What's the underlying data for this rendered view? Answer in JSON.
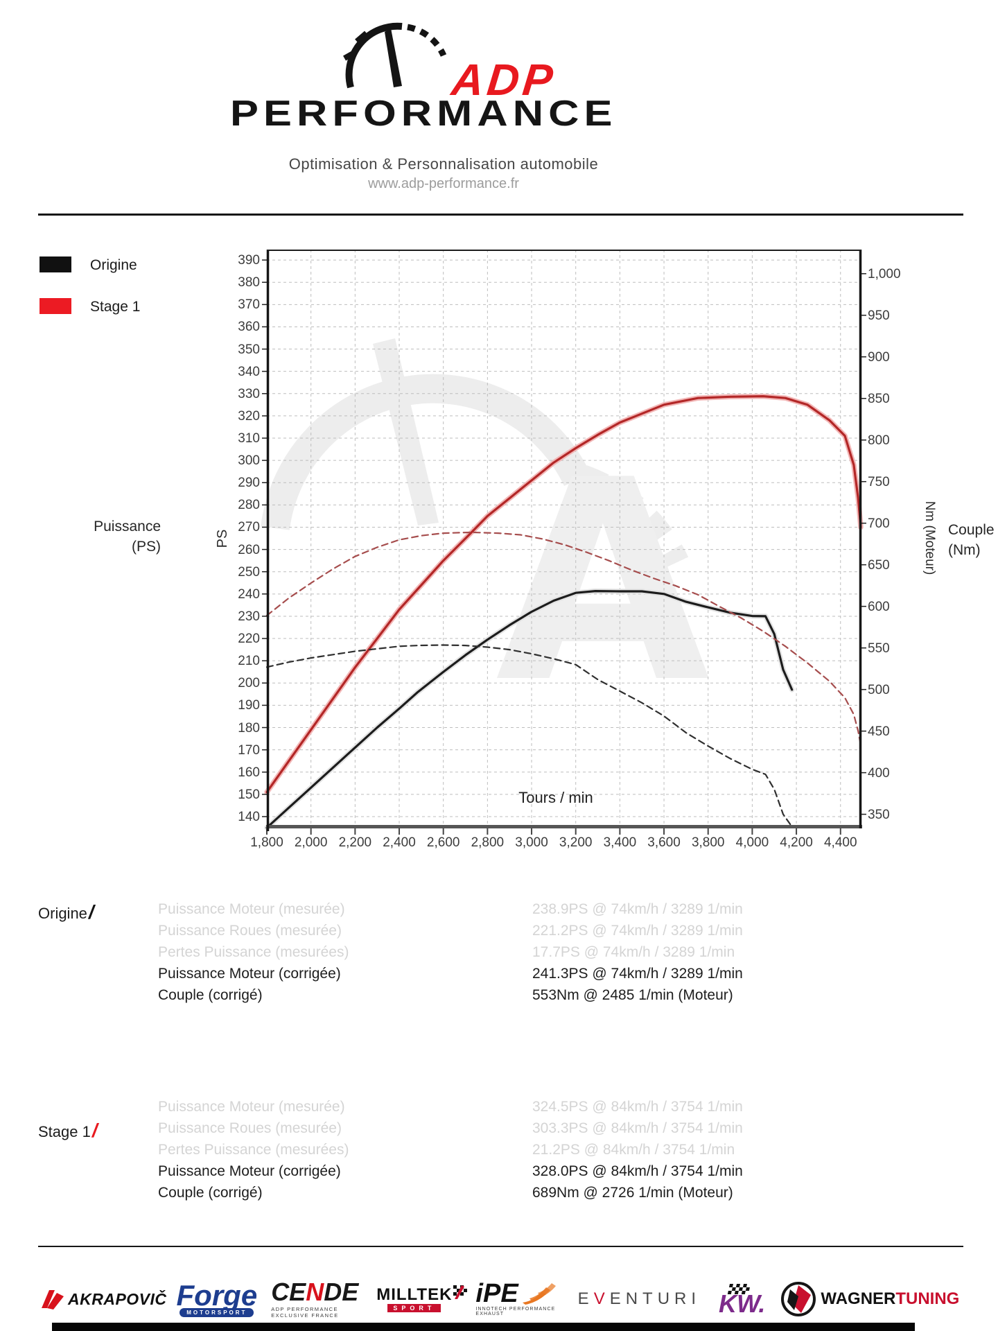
{
  "header": {
    "brand_adp": "ADP",
    "brand_performance": "PERFORMANCE",
    "tagline": "Optimisation & Personnalisation automobile",
    "website": "www.adp-performance.fr",
    "accent_red": "#e8191f",
    "ink": "#141414"
  },
  "legend": [
    {
      "label": "Origine",
      "color": "#111111"
    },
    {
      "label": "Stage 1",
      "color": "#ec1b23"
    }
  ],
  "chart_data": {
    "type": "line",
    "title": "",
    "xlabel": "Tours / min",
    "ylabel_left_line1": "Puissance",
    "ylabel_left_line2": "(PS)",
    "y_left_unit": "PS",
    "ylabel_right_line1": "Couple",
    "ylabel_right_line2": "(Nm)",
    "y_right_unit": "Nm (Moteur)",
    "grid": true,
    "grid_color": "#bdbdbd",
    "x_range": [
      1800,
      4495
    ],
    "x_ticks": [
      1800,
      2000,
      2200,
      2400,
      2600,
      2800,
      3000,
      3200,
      3400,
      3600,
      3800,
      4000,
      4200,
      4400
    ],
    "y_left_range": [
      134.7,
      394.7
    ],
    "y_left_ticks": [
      140,
      150,
      160,
      170,
      180,
      190,
      200,
      210,
      220,
      230,
      240,
      250,
      260,
      270,
      280,
      290,
      300,
      310,
      320,
      330,
      340,
      350,
      360,
      370,
      380,
      390
    ],
    "y_right_range": [
      333,
      1029
    ],
    "y_right_ticks": [
      350,
      400,
      450,
      500,
      550,
      600,
      650,
      700,
      750,
      800,
      850,
      900,
      950,
      1000
    ],
    "series": [
      {
        "name": "Origine Puissance (PS)",
        "axis": "left",
        "line": "solid",
        "color": "#1c1c1c",
        "halo": "#e3e3e3",
        "points": [
          [
            1800,
            135
          ],
          [
            1900,
            144
          ],
          [
            2000,
            153
          ],
          [
            2100,
            162
          ],
          [
            2200,
            171
          ],
          [
            2300,
            180
          ],
          [
            2400,
            188.5
          ],
          [
            2485,
            196
          ],
          [
            2600,
            205
          ],
          [
            2700,
            212.5
          ],
          [
            2800,
            219.5
          ],
          [
            2900,
            226
          ],
          [
            3000,
            232
          ],
          [
            3100,
            237
          ],
          [
            3200,
            240.5
          ],
          [
            3289,
            241.3
          ],
          [
            3400,
            241.2
          ],
          [
            3500,
            241.2
          ],
          [
            3600,
            240
          ],
          [
            3700,
            236.5
          ],
          [
            3800,
            234
          ],
          [
            3900,
            231.6
          ],
          [
            4000,
            230.1
          ],
          [
            4060,
            230
          ],
          [
            4100,
            222
          ],
          [
            4140,
            206
          ],
          [
            4180,
            197
          ]
        ]
      },
      {
        "name": "Stage 1 Puissance (PS)",
        "axis": "left",
        "line": "solid",
        "color": "#b32727",
        "halo": "#f2b6b6",
        "points": [
          [
            1800,
            151
          ],
          [
            1900,
            165
          ],
          [
            2000,
            179
          ],
          [
            2100,
            193
          ],
          [
            2200,
            207
          ],
          [
            2300,
            220
          ],
          [
            2400,
            233
          ],
          [
            2500,
            244
          ],
          [
            2600,
            255
          ],
          [
            2726,
            267.5
          ],
          [
            2800,
            275
          ],
          [
            2900,
            283
          ],
          [
            3000,
            291
          ],
          [
            3100,
            299
          ],
          [
            3200,
            305.5
          ],
          [
            3300,
            311.5
          ],
          [
            3400,
            317
          ],
          [
            3500,
            321
          ],
          [
            3600,
            325
          ],
          [
            3754,
            328
          ],
          [
            3900,
            328.6
          ],
          [
            4050,
            328.8
          ],
          [
            4150,
            328
          ],
          [
            4250,
            325
          ],
          [
            4350,
            318
          ],
          [
            4420,
            311
          ],
          [
            4460,
            298
          ],
          [
            4480,
            283
          ],
          [
            4492,
            270
          ]
        ]
      },
      {
        "name": "Origine Couple (Nm)",
        "axis": "right",
        "line": "dashed",
        "color": "#2f2f2f",
        "points": [
          [
            1800,
            527
          ],
          [
            1900,
            533
          ],
          [
            2000,
            538
          ],
          [
            2100,
            542
          ],
          [
            2200,
            546
          ],
          [
            2300,
            549
          ],
          [
            2400,
            552
          ],
          [
            2485,
            553
          ],
          [
            2600,
            553.5
          ],
          [
            2700,
            553
          ],
          [
            2800,
            551
          ],
          [
            2900,
            548
          ],
          [
            3000,
            543
          ],
          [
            3100,
            537
          ],
          [
            3200,
            530
          ],
          [
            3300,
            512
          ],
          [
            3400,
            498
          ],
          [
            3500,
            484
          ],
          [
            3600,
            468
          ],
          [
            3700,
            448
          ],
          [
            3800,
            432
          ],
          [
            3900,
            417
          ],
          [
            4000,
            404
          ],
          [
            4060,
            398
          ],
          [
            4100,
            380
          ],
          [
            4140,
            350
          ],
          [
            4180,
            335
          ]
        ]
      },
      {
        "name": "Stage 1 Couple (Nm)",
        "axis": "right",
        "line": "dashed",
        "color": "#a64d4d",
        "points": [
          [
            1800,
            589
          ],
          [
            1900,
            610
          ],
          [
            2000,
            628
          ],
          [
            2100,
            645
          ],
          [
            2200,
            660
          ],
          [
            2300,
            671
          ],
          [
            2400,
            680
          ],
          [
            2500,
            685
          ],
          [
            2600,
            688
          ],
          [
            2726,
            689
          ],
          [
            2850,
            688
          ],
          [
            2950,
            686
          ],
          [
            3050,
            681
          ],
          [
            3150,
            674
          ],
          [
            3250,
            665
          ],
          [
            3350,
            655
          ],
          [
            3450,
            644
          ],
          [
            3550,
            634
          ],
          [
            3650,
            625
          ],
          [
            3754,
            614
          ],
          [
            3850,
            600
          ],
          [
            3950,
            586
          ],
          [
            4050,
            570
          ],
          [
            4150,
            552
          ],
          [
            4250,
            532
          ],
          [
            4350,
            510
          ],
          [
            4420,
            490
          ],
          [
            4460,
            470
          ],
          [
            4480,
            450
          ],
          [
            4492,
            433
          ]
        ]
      }
    ]
  },
  "results": [
    {
      "id": "origine",
      "label": "Origine",
      "accent": "#141414",
      "rows": [
        {
          "label": "Puissance Moteur (mesurée)",
          "value": "238.9PS @ 74km/h / 3289 1/min",
          "muted": true
        },
        {
          "label": "Puissance Roues (mesurée)",
          "value": "221.2PS @ 74km/h / 3289 1/min",
          "muted": true
        },
        {
          "label": "Pertes Puissance (mesurées)",
          "value": "17.7PS @ 74km/h / 3289 1/min",
          "muted": true
        },
        {
          "label": "Puissance Moteur (corrigée)",
          "value": "241.3PS @ 74km/h / 3289 1/min",
          "muted": false
        },
        {
          "label": "Couple (corrigé)",
          "value": "553Nm @ 2485 1/min (Moteur)",
          "muted": false
        }
      ]
    },
    {
      "id": "stage1",
      "label": "Stage 1",
      "accent": "#e8191f",
      "rows": [
        {
          "label": "Puissance Moteur (mesurée)",
          "value": "324.5PS @ 84km/h / 3754 1/min",
          "muted": true
        },
        {
          "label": "Puissance Roues (mesurée)",
          "value": "303.3PS @ 84km/h / 3754 1/min",
          "muted": true
        },
        {
          "label": "Pertes Puissance (mesurées)",
          "value": "21.2PS @ 84km/h / 3754 1/min",
          "muted": true
        },
        {
          "label": "Puissance Moteur (corrigée)",
          "value": "328.0PS @ 84km/h / 3754 1/min",
          "muted": false
        },
        {
          "label": "Couple (corrigé)",
          "value": "689Nm @ 2726 1/min (Moteur)",
          "muted": false
        }
      ]
    }
  ],
  "partners": {
    "akrapovic": {
      "text": "AKRAPOVIČ"
    },
    "forge": {
      "text": "Forge",
      "sub": "MOTORSPORT"
    },
    "cende": {
      "ce": "CE",
      "n": "N",
      "de": "DE",
      "sub": "ADP PERFORMANCE EXCLUSIVE FRANCE"
    },
    "milltek": {
      "text": "MILLTEK",
      "sub": "SPORT"
    },
    "ipe": {
      "text": "iPE",
      "sub": "INNOTECH PERFORMANCE EXHAUST"
    },
    "eventuri": {
      "pre": "E",
      "v": "V",
      "rest": "ENTURI"
    },
    "kw": {
      "text": "KW."
    },
    "wagner": {
      "black": "WAGNER",
      "red": "TUNING"
    }
  }
}
